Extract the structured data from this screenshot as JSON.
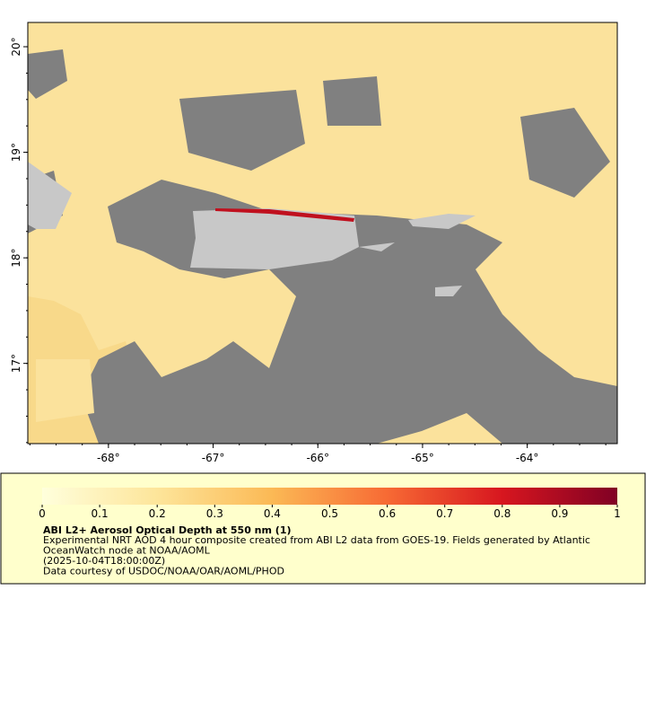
{
  "map": {
    "xlim": [
      -68.77,
      -63.14
    ],
    "ylim": [
      16.24,
      20.23
    ],
    "xticks": [
      {
        "value": -68,
        "label": "-68°"
      },
      {
        "value": -67,
        "label": "-67°"
      },
      {
        "value": -66,
        "label": "-66°"
      },
      {
        "value": -65,
        "label": "-65°"
      },
      {
        "value": -64,
        "label": "-64°"
      }
    ],
    "yticks": [
      {
        "value": 17,
        "label": "17°"
      },
      {
        "value": 18,
        "label": "18°"
      },
      {
        "value": 19,
        "label": "19°"
      },
      {
        "value": 20,
        "label": "20°"
      }
    ]
  },
  "colorbar": {
    "lim": [
      0,
      1
    ],
    "ticks": [
      0,
      0.1,
      0.2,
      0.3,
      0.4,
      0.5,
      0.6,
      0.7,
      0.8,
      0.9,
      1
    ],
    "title": "ABI L2+ Aerosol Optical Depth at 550 nm (1)",
    "description": [
      "Experimental NRT AOD 4 hour composite created from ABI L2 data from GOES-19. Fields generated by Atlantic",
      "OceanWatch node at NOAA/AOML",
      "(2025-10-04T18:00:00Z)",
      "Data courtesy of USDOC/NOAA/OAR/AOML/PHOD"
    ]
  }
}
